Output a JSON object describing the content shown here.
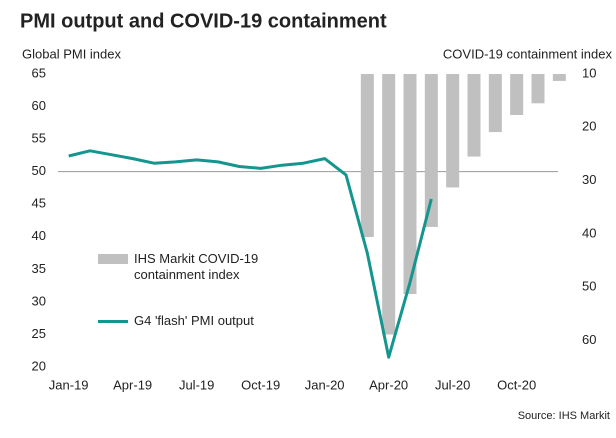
{
  "chart_data": {
    "type": "combo",
    "title": "PMI output and COVID-19 containment",
    "ylabel": "Global PMI index",
    "y2label": "COVID-19 containment index",
    "source": "Source: IHS Markit",
    "categories": [
      "Jan-19",
      null,
      null,
      "Apr-19",
      null,
      null,
      "Jul-19",
      null,
      null,
      "Oct-19",
      null,
      null,
      "Jan-20",
      null,
      null,
      "Apr-20",
      null,
      null,
      "Jul-20",
      null,
      null,
      "Oct-20",
      null,
      null
    ],
    "ylim": [
      20,
      65
    ],
    "yticks": [
      20,
      25,
      30,
      35,
      40,
      45,
      50,
      55,
      60,
      65
    ],
    "y2lim": [
      10,
      65
    ],
    "y2ticks": [
      10,
      20,
      30,
      40,
      50,
      60
    ],
    "y2_inverted": true,
    "reference_line": 50,
    "series": [
      {
        "name": "IHS Markit COVID-19 containment index",
        "type": "bar",
        "axis": "y2",
        "color": "#c0c0c0",
        "values": [
          null,
          null,
          null,
          null,
          null,
          null,
          null,
          null,
          null,
          null,
          null,
          null,
          null,
          null,
          40.6,
          58.9,
          51.3,
          38.7,
          31.3,
          25.5,
          20.9,
          17.7,
          15.5,
          11.3
        ]
      },
      {
        "name": "G4 'flash' PMI output",
        "type": "line",
        "color": "#14968f",
        "values": [
          52.4,
          53.2,
          52.6,
          52.0,
          51.3,
          51.5,
          51.8,
          51.5,
          50.8,
          50.5,
          51.0,
          51.3,
          52.0,
          49.5,
          37.5,
          21.5,
          33.0,
          45.8,
          null,
          null,
          null,
          null,
          null,
          null
        ]
      }
    ]
  }
}
